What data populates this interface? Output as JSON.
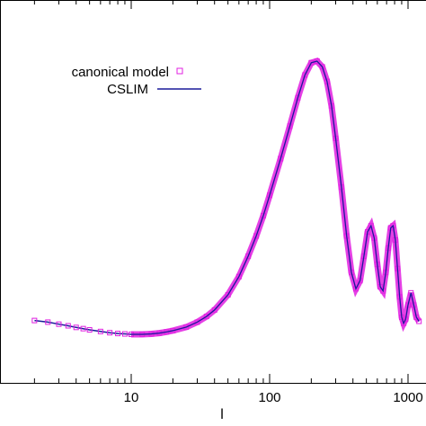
{
  "chart_data": {
    "type": "line",
    "xscale": "log",
    "xlabel": "l",
    "ylabel": "",
    "title": "",
    "xlim": [
      1,
      1200
    ],
    "ylim": [
      0,
      1
    ],
    "x_ticks": [
      {
        "value": 10,
        "label": "10"
      },
      {
        "value": 100,
        "label": "100"
      },
      {
        "value": 1000,
        "label": "1000"
      }
    ],
    "legend": {
      "position": "top-left",
      "entries": [
        {
          "label": "canonical model",
          "marker": "square",
          "color": "#e020e0"
        },
        {
          "label": "CSLIM",
          "marker": "line",
          "color": "#1a1a9a"
        }
      ]
    },
    "series": [
      {
        "name": "canonical model",
        "style": "markers",
        "color": "#e020e0",
        "x": [
          2,
          2.5,
          3,
          3.5,
          4,
          4.5,
          5,
          6,
          7,
          8,
          9,
          10,
          12,
          14,
          16,
          18,
          20,
          25,
          30,
          35,
          40,
          50,
          60,
          70,
          80,
          90,
          100,
          120,
          140,
          160,
          180,
          200,
          220,
          240,
          260,
          280,
          300,
          330,
          360,
          390,
          420,
          450,
          480,
          510,
          540,
          570,
          600,
          630,
          660,
          690,
          720,
          750,
          780,
          810,
          840,
          870,
          900,
          930,
          960,
          1000,
          1050,
          1100,
          1150,
          1200
        ],
        "y": [
          0.262,
          0.258,
          0.253,
          0.249,
          0.245,
          0.242,
          0.239,
          0.235,
          0.232,
          0.23,
          0.229,
          0.228,
          0.228,
          0.229,
          0.231,
          0.234,
          0.237,
          0.246,
          0.258,
          0.272,
          0.288,
          0.325,
          0.37,
          0.42,
          0.47,
          0.52,
          0.57,
          0.66,
          0.74,
          0.81,
          0.866,
          0.896,
          0.9,
          0.886,
          0.85,
          0.79,
          0.71,
          0.59,
          0.47,
          0.38,
          0.34,
          0.36,
          0.42,
          0.48,
          0.495,
          0.465,
          0.4,
          0.345,
          0.335,
          0.38,
          0.44,
          0.49,
          0.495,
          0.46,
          0.39,
          0.32,
          0.27,
          0.255,
          0.265,
          0.3,
          0.33,
          0.3,
          0.27,
          0.26
        ]
      },
      {
        "name": "CSLIM",
        "style": "line",
        "color": "#1a1a9a",
        "x": [
          2,
          2.5,
          3,
          3.5,
          4,
          4.5,
          5,
          6,
          7,
          8,
          9,
          10,
          12,
          14,
          16,
          18,
          20,
          25,
          30,
          35,
          40,
          50,
          60,
          70,
          80,
          90,
          100,
          120,
          140,
          160,
          180,
          200,
          220,
          240,
          260,
          280,
          300,
          330,
          360,
          390,
          420,
          450,
          480,
          510,
          540,
          570,
          600,
          630,
          660,
          690,
          720,
          750,
          780,
          810,
          840,
          870,
          900,
          930,
          960,
          1000,
          1050,
          1100,
          1150,
          1200
        ],
        "y": [
          0.262,
          0.258,
          0.253,
          0.249,
          0.245,
          0.242,
          0.239,
          0.235,
          0.232,
          0.23,
          0.229,
          0.228,
          0.228,
          0.229,
          0.231,
          0.234,
          0.237,
          0.246,
          0.258,
          0.272,
          0.288,
          0.325,
          0.37,
          0.42,
          0.47,
          0.52,
          0.57,
          0.66,
          0.74,
          0.81,
          0.866,
          0.896,
          0.9,
          0.886,
          0.85,
          0.79,
          0.71,
          0.59,
          0.47,
          0.38,
          0.34,
          0.36,
          0.42,
          0.48,
          0.495,
          0.465,
          0.4,
          0.345,
          0.335,
          0.38,
          0.44,
          0.49,
          0.495,
          0.46,
          0.39,
          0.32,
          0.27,
          0.255,
          0.265,
          0.3,
          0.33,
          0.3,
          0.27,
          0.26
        ]
      }
    ]
  }
}
